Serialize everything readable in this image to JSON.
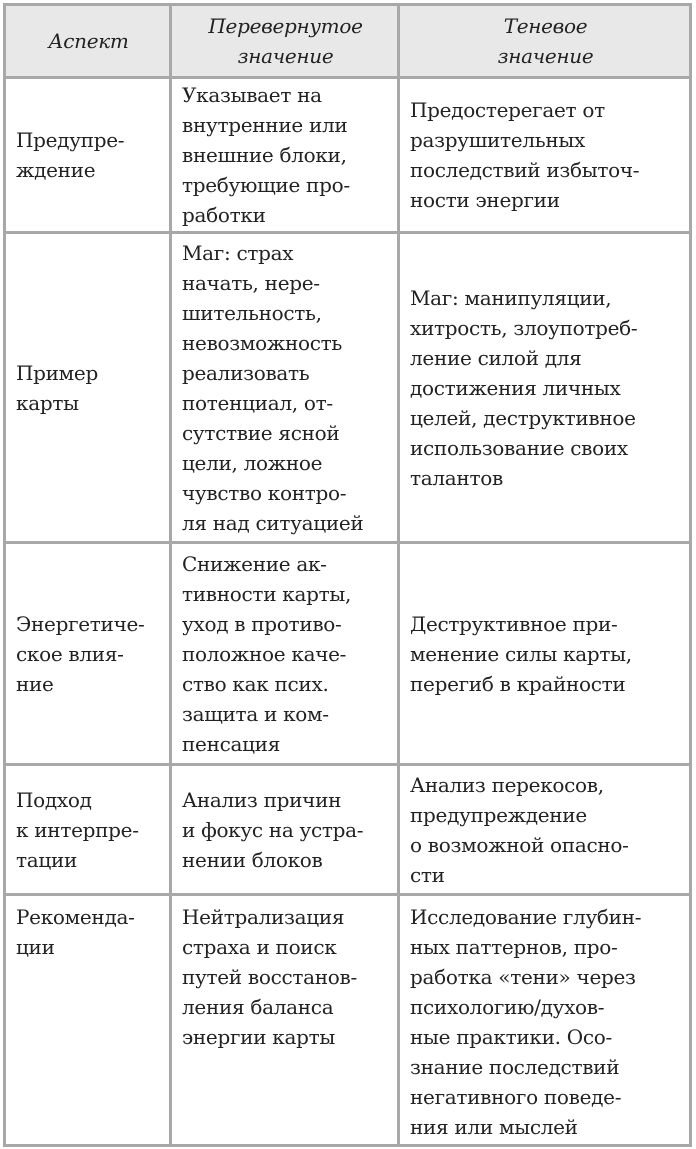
{
  "table": {
    "headers": [
      [
        "Аспект"
      ],
      [
        "Перевернутое",
        "значение"
      ],
      [
        "Теневое",
        "значение"
      ]
    ],
    "rows": [
      {
        "cells": [
          [
            "Предупре-",
            "ждение"
          ],
          [
            "Указывает на",
            "внутренние или",
            "внешние блоки,",
            "требующие про-",
            "работки"
          ],
          [
            "Предостерегает от",
            "разрушительных",
            "последствий избыточ-",
            "ности энергии"
          ]
        ]
      },
      {
        "cells": [
          [
            "Пример",
            "карты"
          ],
          [
            "Маг: страх",
            "начать, нере-",
            "шительность,",
            "невозможность",
            "реализовать",
            "потенциал, от-",
            "сутствие ясной",
            "цели, ложное",
            "чувство контро-",
            "ля над ситуацией"
          ],
          [
            "Маг: манипуляции,",
            "хитрость, злоупотреб-",
            "ление силой для",
            "достижения личных",
            "целей, деструктивное",
            "использование своих",
            "талантов"
          ]
        ]
      },
      {
        "cells": [
          [
            "Энергетиче-",
            "ское влия-",
            "ние"
          ],
          [
            "Снижение ак-",
            "тивности карты,",
            "уход в противо-",
            "положное каче-",
            "ство как псих.",
            "защита и ком-",
            "пенсация"
          ],
          [
            "Деструктивное при-",
            "менение силы карты,",
            "перегиб в крайности"
          ]
        ]
      },
      {
        "cells": [
          [
            "Подход",
            "к интерпре-",
            "тации"
          ],
          [
            "Анализ причин",
            "и фокус на устра-",
            "нении блоков"
          ],
          [
            "Анализ перекосов,",
            "предупреждение",
            "о возможной опасно-",
            "сти"
          ]
        ]
      },
      {
        "top": true,
        "cells": [
          [
            "Рекоменда-",
            "ции"
          ],
          [
            "Нейтрализация",
            "страха и поиск",
            "путей восстанов-",
            "ления баланса",
            "энергии карты"
          ],
          [
            "Исследование глубин-",
            "ных паттернов, про-",
            "работка «тени» через",
            "психологию/духов-",
            "ные практики. Осо-",
            "знание последствий",
            "негативного поведе-",
            "ния или мыслей"
          ]
        ]
      }
    ]
  }
}
